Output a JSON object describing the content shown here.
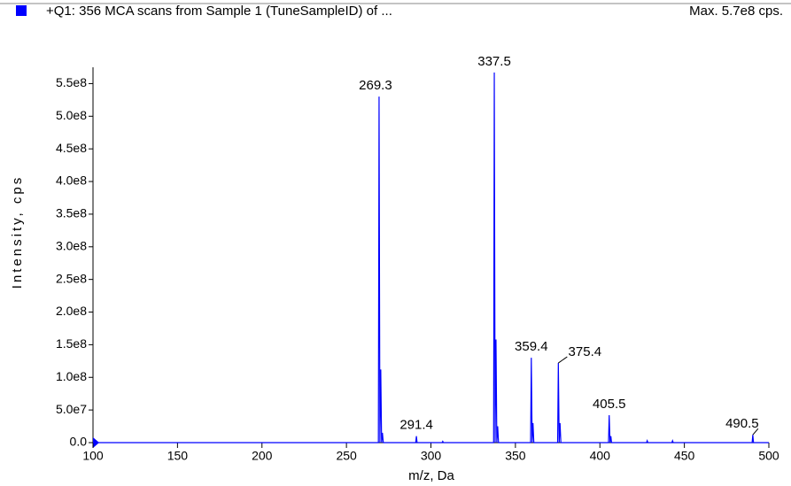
{
  "chart_data": {
    "type": "line",
    "title": "+Q1: 356 MCA scans from Sample 1 (TuneSampleID) of ...",
    "subtitle": "Max. 5.7e8 cps.",
    "x_label": "m/z, Da",
    "y_label": "Intensity, cps",
    "xlim": [
      100,
      500
    ],
    "xticks": [
      100,
      150,
      200,
      250,
      300,
      350,
      400,
      450,
      500
    ],
    "ylim": [
      0,
      575000000
    ],
    "yticks": [
      {
        "value": 0,
        "label": "0.0"
      },
      {
        "value": 50000000,
        "label": "5.0e7"
      },
      {
        "value": 100000000,
        "label": "1.0e8"
      },
      {
        "value": 150000000,
        "label": "1.5e8"
      },
      {
        "value": 200000000,
        "label": "2.0e8"
      },
      {
        "value": 250000000,
        "label": "2.5e8"
      },
      {
        "value": 300000000,
        "label": "3.0e8"
      },
      {
        "value": 350000000,
        "label": "3.5e8"
      },
      {
        "value": 400000000,
        "label": "4.0e8"
      },
      {
        "value": 450000000,
        "label": "4.5e8"
      },
      {
        "value": 500000000,
        "label": "5.0e8"
      },
      {
        "value": 550000000,
        "label": "5.5e8"
      }
    ],
    "color": "#0000ff",
    "x": [
      100,
      268.9,
      269.3,
      269.8,
      270.3,
      270.8,
      271.3,
      271.8,
      291.0,
      291.4,
      291.8,
      306.6,
      307.0,
      307.4,
      337.1,
      337.5,
      338.0,
      338.5,
      339.0,
      339.5,
      340.0,
      359.0,
      359.4,
      359.9,
      360.4,
      360.9,
      375.0,
      375.4,
      375.9,
      376.4,
      376.9,
      405.1,
      405.5,
      406.0,
      406.5,
      406.9,
      427.6,
      428.0,
      428.4,
      442.6,
      443.0,
      443.4,
      490.1,
      490.5,
      490.9,
      500
    ],
    "values": [
      0,
      0,
      530000000,
      0,
      112000000,
      0,
      15000000,
      0,
      0,
      10000000,
      0,
      0,
      2000000,
      0,
      0,
      567000000,
      0,
      158000000,
      0,
      25000000,
      0,
      0,
      130000000,
      0,
      30000000,
      0,
      0,
      122000000,
      0,
      30000000,
      0,
      0,
      42000000,
      0,
      10000000,
      0,
      0,
      3000000,
      0,
      0,
      3000000,
      0,
      0,
      12000000,
      0,
      0
    ],
    "annotations": [
      {
        "text": "269.3",
        "x": 269.3,
        "y": 530000000
      },
      {
        "text": "291.4",
        "x": 291.4,
        "y": 10000000
      },
      {
        "text": "337.5",
        "x": 337.5,
        "y": 567000000
      },
      {
        "text": "359.4",
        "x": 359.4,
        "y": 130000000
      },
      {
        "text": "375.4",
        "x": 375.4,
        "y": 122000000
      },
      {
        "text": "405.5",
        "x": 405.5,
        "y": 42000000
      },
      {
        "text": "490.5",
        "x": 490.5,
        "y": 12000000
      }
    ]
  }
}
